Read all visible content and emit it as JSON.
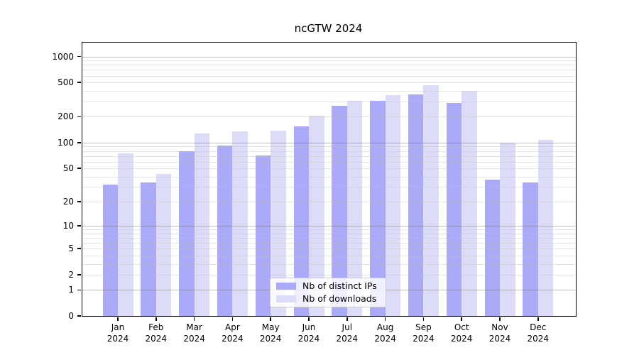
{
  "chart_data": {
    "type": "bar",
    "title": "ncGTW 2024",
    "categories": [
      "Jan",
      "Feb",
      "Mar",
      "Apr",
      "May",
      "Jun",
      "Jul",
      "Aug",
      "Sep",
      "Oct",
      "Nov",
      "Dec"
    ],
    "x_year_label": "2024",
    "series": [
      {
        "name": "Nb of distinct IPs",
        "color": "#aaaaf8",
        "values": [
          32,
          34,
          79,
          93,
          71,
          154,
          268,
          307,
          361,
          292,
          37,
          34
        ]
      },
      {
        "name": "Nb of downloads",
        "color": "#dcdcf8",
        "values": [
          75,
          43,
          127,
          136,
          138,
          204,
          304,
          354,
          465,
          396,
          100,
          107
        ]
      }
    ],
    "y_axis": {
      "scale": "pseudo-log (log10 of value+1)",
      "tick_labels": [
        0,
        1,
        2,
        5,
        10,
        20,
        50,
        100,
        200,
        500,
        1000
      ],
      "major_gridlines": [
        1,
        10,
        100,
        1000
      ],
      "ylim": [
        0,
        1200
      ]
    },
    "grid": "on",
    "legend_position": "bottom-center"
  }
}
